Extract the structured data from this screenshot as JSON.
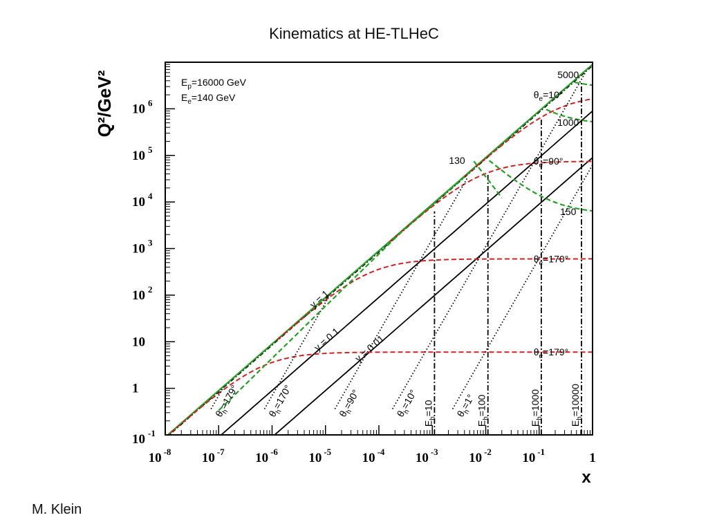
{
  "slide": {
    "title": "Kinematics at HE-TLHeC",
    "author": "M. Klein"
  },
  "colors": {
    "frame": "#000000",
    "iso_y": "#000000",
    "iso_theta_e": "#d42020",
    "iso_theta_h": "#000000",
    "iso_E_h": "#000000",
    "iso_E_e": "#22a022",
    "kinematic_limit": "#22a022"
  },
  "chart_data": {
    "type": "line",
    "title": "",
    "xlabel": "x",
    "ylabel": "Q²/GeV²",
    "xscale": "log",
    "yscale": "log",
    "xlim": [
      1e-08,
      1
    ],
    "ylim": [
      0.1,
      10000000.0
    ],
    "grid": false,
    "x_ticks": [
      {
        "base": "10",
        "exp": "-8"
      },
      {
        "base": "10",
        "exp": "-7"
      },
      {
        "base": "10",
        "exp": "-6"
      },
      {
        "base": "10",
        "exp": "-5"
      },
      {
        "base": "10",
        "exp": "-4"
      },
      {
        "base": "10",
        "exp": "-3"
      },
      {
        "base": "10",
        "exp": "-2"
      },
      {
        "base": "10",
        "exp": "-1"
      },
      {
        "base": "1",
        "exp": ""
      }
    ],
    "y_ticks": [
      {
        "base": "10",
        "exp": "-1"
      },
      {
        "base": "1",
        "exp": ""
      },
      {
        "base": "10",
        "exp": ""
      },
      {
        "base": "10",
        "exp": "2"
      },
      {
        "base": "10",
        "exp": "3"
      },
      {
        "base": "10",
        "exp": "4"
      },
      {
        "base": "10",
        "exp": "5"
      },
      {
        "base": "10",
        "exp": "6"
      }
    ],
    "beam_labels": [
      {
        "sym": "E",
        "sub": "p",
        "rest": "=16000 GeV"
      },
      {
        "sym": "E",
        "sub": "e",
        "rest": "=140 GeV"
      }
    ],
    "s_GeV2": 8960000,
    "iso_y": [
      {
        "y": 1,
        "label": "y = 1"
      },
      {
        "y": 0.1,
        "label": "y = 0.1"
      },
      {
        "y": 0.01,
        "label": "y = 0.01"
      }
    ],
    "iso_theta_e": [
      {
        "deg": 10,
        "label": "θe=10°",
        "Q2_plateau": 2000000
      },
      {
        "deg": 90,
        "label": "θe=90°",
        "Q2_plateau": 75000
      },
      {
        "deg": 170,
        "label": "θe=170°",
        "Q2_plateau": 600
      },
      {
        "deg": 179,
        "label": "θe=179°",
        "Q2_plateau": 6
      }
    ],
    "iso_theta_h": [
      {
        "label": "θh=179°",
        "x_at_Q2_1": 1.2e-07
      },
      {
        "label": "θh=170°",
        "x_at_Q2_1": 1.2e-06
      },
      {
        "label": "θh=90°",
        "x_at_Q2_1": 2.5e-05
      },
      {
        "label": "θh=10°",
        "x_at_Q2_1": 0.0003
      },
      {
        "label": "θh=1°",
        "x_at_Q2_1": 0.004
      }
    ],
    "iso_E_h": [
      {
        "label": "Eh=10",
        "x": 0.0011
      },
      {
        "label": "Eh=100",
        "x": 0.011
      },
      {
        "label": "Eh=1000",
        "x": 0.11
      },
      {
        "label": "Eh=10000",
        "x": 0.62
      }
    ],
    "iso_E_e": [
      {
        "label": "130",
        "x_min": 0.006,
        "Q2_max": 75000
      },
      {
        "label": "150",
        "Q2_at_x1": 5600
      },
      {
        "label": "1000",
        "Q2_at_x1": 460000
      },
      {
        "label": "5000",
        "Q2_at_x1": 2800000
      }
    ]
  }
}
